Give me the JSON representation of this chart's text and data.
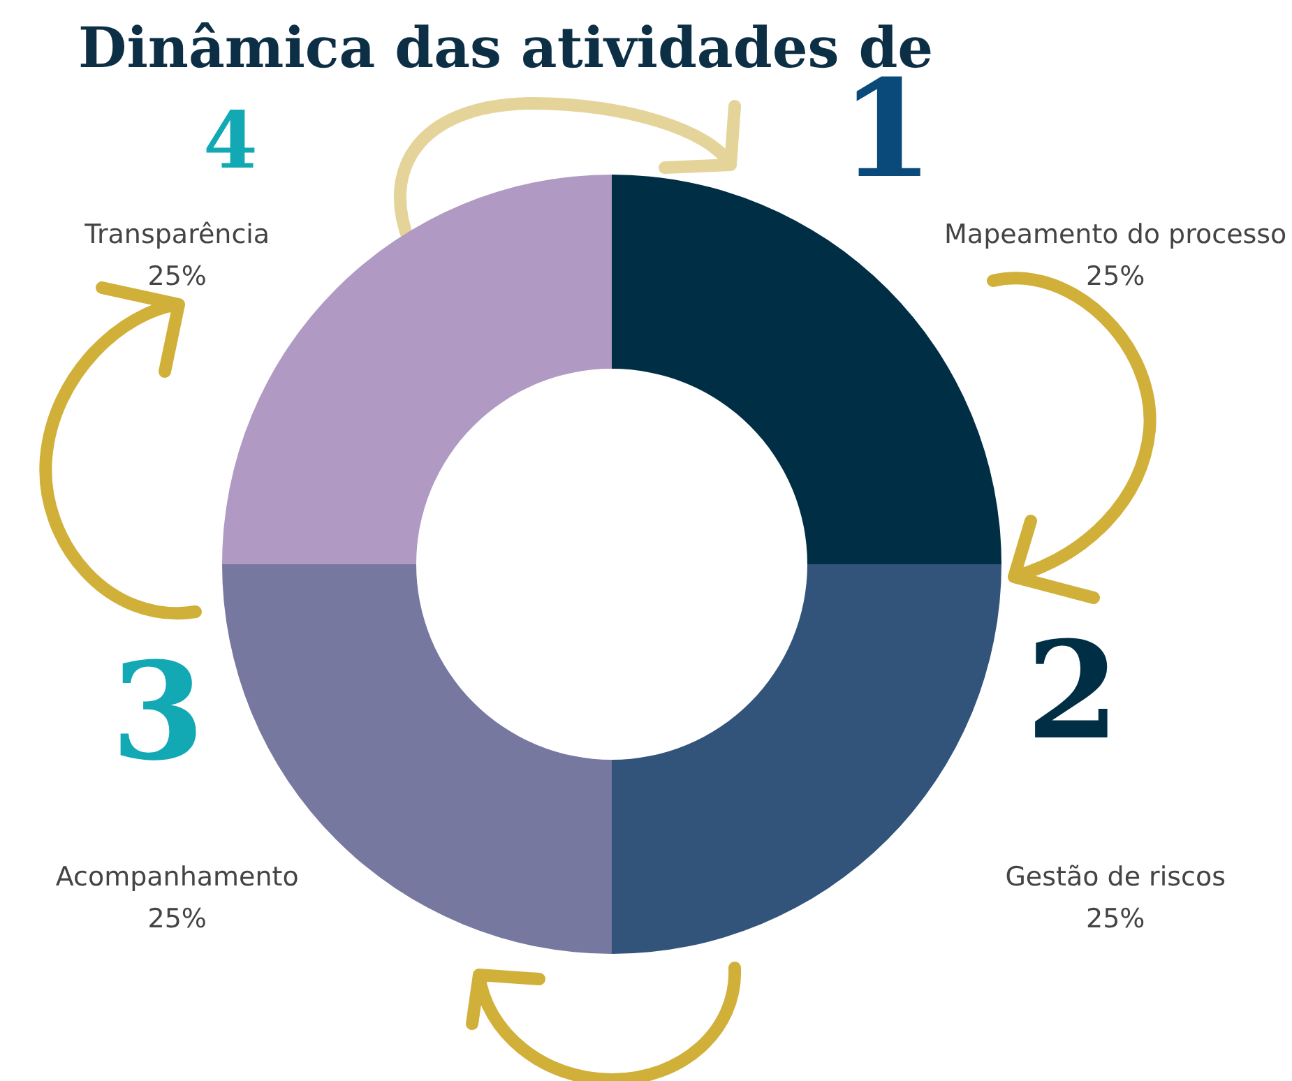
{
  "chart_data": {
    "type": "donut",
    "title": "Dinâmica das atividades de",
    "categories": [
      "Mapeamento do processo",
      "Gestão de riscos",
      "Acompanhamento",
      "Transparência"
    ],
    "values": [
      25,
      25,
      25,
      25
    ],
    "colors": [
      "#002f45",
      "#33547a",
      "#7678a0",
      "#b09ac4"
    ],
    "annotations": [
      "1",
      "2",
      "3",
      "4"
    ],
    "value_labels": [
      "25%",
      "25%",
      "25%",
      "25%"
    ]
  }
}
